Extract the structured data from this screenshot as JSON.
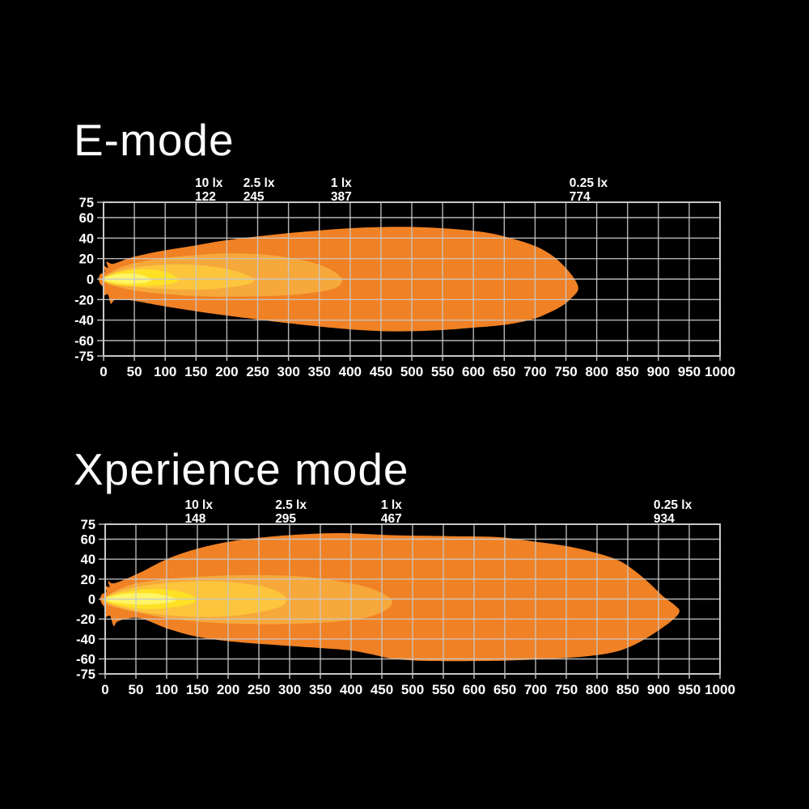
{
  "page": {
    "background": "#000000"
  },
  "palette": {
    "grid": "#c9c9c9",
    "axis_text": "#ffffff",
    "title_text": "#fdfdfd"
  },
  "chart_data": [
    {
      "type": "area",
      "title": "E-mode",
      "xlabel": "",
      "ylabel": "",
      "xlim": [
        0,
        1000
      ],
      "ylim": [
        -75,
        75
      ],
      "grid": true,
      "x_ticks": [
        0,
        50,
        100,
        150,
        200,
        250,
        300,
        350,
        400,
        450,
        500,
        550,
        600,
        650,
        700,
        750,
        800,
        850,
        900,
        950,
        1000
      ],
      "y_ticks": [
        75,
        60,
        40,
        20,
        0,
        -20,
        -40,
        -60,
        -75
      ],
      "annotations": [
        {
          "label": "10 lx",
          "value": 122,
          "dx": 34
        },
        {
          "label": "2.5 lx",
          "value": 245,
          "dx": 0
        },
        {
          "label": "1 lx",
          "value": 387,
          "dx": 0
        },
        {
          "label": "0.25 lx",
          "value": 774,
          "dx": 0
        }
      ],
      "contours": [
        {
          "level": "0.25 lx",
          "color": "#F08124",
          "points": [
            [
              -8,
              0
            ],
            [
              -5,
              5
            ],
            [
              2,
              7
            ],
            [
              0,
              13
            ],
            [
              7,
              11
            ],
            [
              5,
              17
            ],
            [
              16,
              15
            ],
            [
              45,
              21
            ],
            [
              90,
              27
            ],
            [
              140,
              32
            ],
            [
              200,
              38
            ],
            [
              270,
              43
            ],
            [
              340,
              47
            ],
            [
              410,
              50
            ],
            [
              490,
              51
            ],
            [
              565,
              49
            ],
            [
              625,
              45
            ],
            [
              672,
              38
            ],
            [
              705,
              31
            ],
            [
              730,
              22
            ],
            [
              748,
              12
            ],
            [
              764,
              0
            ],
            [
              770,
              -10
            ],
            [
              758,
              -19
            ],
            [
              744,
              -26
            ],
            [
              722,
              -33
            ],
            [
              697,
              -39
            ],
            [
              658,
              -44
            ],
            [
              608,
              -47
            ],
            [
              540,
              -50
            ],
            [
              468,
              -51
            ],
            [
              400,
              -49
            ],
            [
              330,
              -45
            ],
            [
              258,
              -40
            ],
            [
              192,
              -35
            ],
            [
              135,
              -30
            ],
            [
              85,
              -25
            ],
            [
              48,
              -21
            ],
            [
              20,
              -20
            ],
            [
              12,
              -24
            ],
            [
              7,
              -15
            ],
            [
              0,
              -16
            ],
            [
              1,
              -9
            ],
            [
              -5,
              -5
            ]
          ]
        },
        {
          "level": "1 lx",
          "color": "#F6A83B",
          "points": [
            [
              -2,
              1
            ],
            [
              30,
              12
            ],
            [
              80,
              19
            ],
            [
              140,
              23
            ],
            [
              200,
              25
            ],
            [
              260,
              24
            ],
            [
              310,
              20
            ],
            [
              350,
              14
            ],
            [
              377,
              6
            ],
            [
              387,
              -2
            ],
            [
              375,
              -9
            ],
            [
              342,
              -13
            ],
            [
              292,
              -16
            ],
            [
              232,
              -17
            ],
            [
              170,
              -17
            ],
            [
              110,
              -15
            ],
            [
              60,
              -12
            ],
            [
              25,
              -8
            ],
            [
              4,
              -4
            ]
          ]
        },
        {
          "level": "2.5 lx",
          "color": "#FCC53C",
          "points": [
            [
              -1,
              1
            ],
            [
              25,
              8
            ],
            [
              60,
              12
            ],
            [
              100,
              14
            ],
            [
              140,
              14
            ],
            [
              180,
              12
            ],
            [
              213,
              8
            ],
            [
              236,
              3
            ],
            [
              245,
              -1
            ],
            [
              234,
              -5
            ],
            [
              205,
              -8
            ],
            [
              165,
              -10
            ],
            [
              120,
              -10
            ],
            [
              75,
              -9
            ],
            [
              35,
              -6
            ],
            [
              6,
              -3
            ]
          ]
        },
        {
          "level": "10 lx",
          "color": "#FFE125",
          "points": [
            [
              -1,
              0.5
            ],
            [
              15,
              5
            ],
            [
              35,
              8
            ],
            [
              60,
              9.5
            ],
            [
              85,
              9
            ],
            [
              105,
              6
            ],
            [
              117,
              2
            ],
            [
              122,
              -1
            ],
            [
              112,
              -4
            ],
            [
              90,
              -6
            ],
            [
              62,
              -7
            ],
            [
              35,
              -6.5
            ],
            [
              10,
              -4
            ]
          ]
        },
        {
          "level": "hotspot",
          "color": "#FFF567",
          "points": [
            [
              -1,
              0
            ],
            [
              10,
              3
            ],
            [
              25,
              5
            ],
            [
              45,
              5.5
            ],
            [
              62,
              4
            ],
            [
              74,
              1
            ],
            [
              78,
              -1
            ],
            [
              68,
              -3.5
            ],
            [
              48,
              -4.5
            ],
            [
              25,
              -4
            ],
            [
              6,
              -2
            ]
          ]
        }
      ]
    },
    {
      "type": "area",
      "title": "Xperience mode",
      "xlabel": "",
      "ylabel": "",
      "xlim": [
        0,
        1000
      ],
      "ylim": [
        -75,
        75
      ],
      "grid": true,
      "x_ticks": [
        0,
        50,
        100,
        150,
        200,
        250,
        300,
        350,
        400,
        450,
        500,
        550,
        600,
        650,
        700,
        750,
        800,
        850,
        900,
        950,
        1000
      ],
      "y_ticks": [
        75,
        60,
        40,
        20,
        0,
        -20,
        -40,
        -60,
        -75
      ],
      "annotations": [
        {
          "label": "10 lx",
          "value": 148,
          "dx": 0
        },
        {
          "label": "2.5 lx",
          "value": 295,
          "dx": 0
        },
        {
          "label": "1 lx",
          "value": 467,
          "dx": 0
        },
        {
          "label": "0.25 lx",
          "value": 934,
          "dx": -18
        }
      ],
      "contours": [
        {
          "level": "0.25 lx",
          "color": "#F08124",
          "points": [
            [
              -8,
              0
            ],
            [
              -5,
              5
            ],
            [
              2,
              7
            ],
            [
              0,
              13
            ],
            [
              7,
              12
            ],
            [
              5,
              18
            ],
            [
              16,
              16
            ],
            [
              55,
              26
            ],
            [
              104,
              41
            ],
            [
              153,
              51
            ],
            [
              206,
              58
            ],
            [
              260,
              62
            ],
            [
              325,
              65
            ],
            [
              391,
              66
            ],
            [
              470,
              64
            ],
            [
              560,
              63
            ],
            [
              641,
              62
            ],
            [
              694,
              58
            ],
            [
              751,
              53
            ],
            [
              794,
              47
            ],
            [
              834,
              39
            ],
            [
              862,
              28
            ],
            [
              885,
              16
            ],
            [
              907,
              3
            ],
            [
              926,
              -6
            ],
            [
              934,
              -13
            ],
            [
              919,
              -23
            ],
            [
              891,
              -35
            ],
            [
              860,
              -46
            ],
            [
              829,
              -53
            ],
            [
              789,
              -57
            ],
            [
              750,
              -59
            ],
            [
              684,
              -61
            ],
            [
              618,
              -62
            ],
            [
              528,
              -62
            ],
            [
              470,
              -60
            ],
            [
              430,
              -55
            ],
            [
              391,
              -51
            ],
            [
              300,
              -47
            ],
            [
              214,
              -43
            ],
            [
              152,
              -38
            ],
            [
              103,
              -30
            ],
            [
              55,
              -19
            ],
            [
              22,
              -22
            ],
            [
              14,
              -27
            ],
            [
              8,
              -17
            ],
            [
              0,
              -18
            ],
            [
              1,
              -10
            ],
            [
              -5,
              -5
            ]
          ]
        },
        {
          "level": "1 lx",
          "color": "#F6A83B",
          "points": [
            [
              -2,
              1
            ],
            [
              40,
              14
            ],
            [
              100,
              20
            ],
            [
              170,
              23
            ],
            [
              240,
              24
            ],
            [
              310,
              23
            ],
            [
              370,
              19
            ],
            [
              420,
              13
            ],
            [
              453,
              5
            ],
            [
              467,
              -3
            ],
            [
              454,
              -12
            ],
            [
              420,
              -19
            ],
            [
              368,
              -23
            ],
            [
              300,
              -25
            ],
            [
              230,
              -25
            ],
            [
              160,
              -23
            ],
            [
              100,
              -19
            ],
            [
              50,
              -13
            ],
            [
              5,
              -6
            ]
          ]
        },
        {
          "level": "2.5 lx",
          "color": "#FCC53C",
          "points": [
            [
              -1,
              1
            ],
            [
              30,
              9
            ],
            [
              70,
              14
            ],
            [
              120,
              17
            ],
            [
              170,
              18
            ],
            [
              220,
              16
            ],
            [
              260,
              12
            ],
            [
              285,
              6
            ],
            [
              295,
              0
            ],
            [
              287,
              -7
            ],
            [
              261,
              -12
            ],
            [
              220,
              -16
            ],
            [
              170,
              -18
            ],
            [
              120,
              -17
            ],
            [
              70,
              -14
            ],
            [
              30,
              -9
            ],
            [
              5,
              -4
            ]
          ]
        },
        {
          "level": "10 lx",
          "color": "#FFE125",
          "points": [
            [
              -1,
              0.5
            ],
            [
              18,
              5
            ],
            [
              42,
              8
            ],
            [
              70,
              10
            ],
            [
              100,
              9.5
            ],
            [
              125,
              7
            ],
            [
              142,
              3
            ],
            [
              148,
              -1
            ],
            [
              138,
              -5
            ],
            [
              112,
              -8
            ],
            [
              80,
              -10
            ],
            [
              48,
              -9
            ],
            [
              20,
              -6
            ],
            [
              4,
              -3
            ]
          ]
        },
        {
          "level": "hotspot",
          "color": "#FFF567",
          "points": [
            [
              -1,
              0
            ],
            [
              12,
              3
            ],
            [
              30,
              5
            ],
            [
              55,
              6
            ],
            [
              80,
              5.5
            ],
            [
              100,
              3.5
            ],
            [
              112,
              1
            ],
            [
              115,
              -1
            ],
            [
              105,
              -3.5
            ],
            [
              80,
              -5
            ],
            [
              50,
              -5.5
            ],
            [
              22,
              -4
            ],
            [
              5,
              -2
            ]
          ]
        }
      ]
    }
  ]
}
